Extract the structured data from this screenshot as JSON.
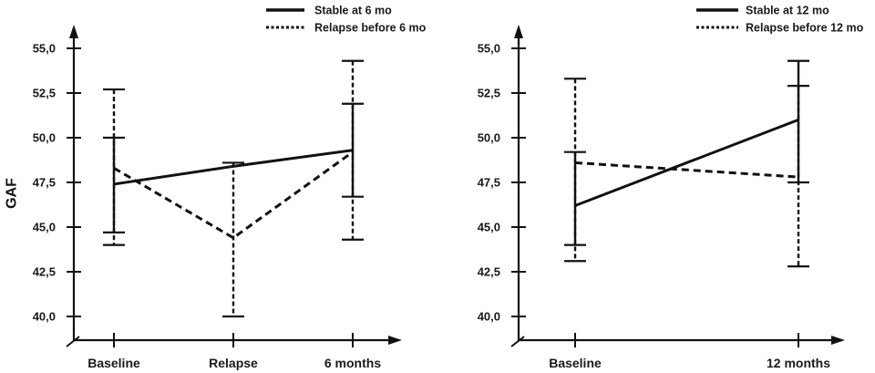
{
  "chart_data": [
    {
      "type": "line",
      "title": "",
      "ylabel": "GAF",
      "xlabel": "",
      "ylim": [
        38.8,
        56.4
      ],
      "yticks": [
        "55,0",
        "52,5",
        "50,0",
        "47,5",
        "45,0",
        "42,5",
        "40,0"
      ],
      "ytick_values": [
        55.0,
        52.5,
        50.0,
        47.5,
        45.0,
        42.5,
        40.0
      ],
      "categories": [
        "Baseline",
        "Relapse",
        "6 months"
      ],
      "grid": false,
      "legend_position": "top-right",
      "series": [
        {
          "name": "Stable at 6 mo",
          "style": "solid",
          "x_index": [
            0,
            1,
            2
          ],
          "values": [
            47.4,
            48.4,
            49.3
          ],
          "error_low": [
            44.7,
            null,
            46.7
          ],
          "error_high": [
            50.0,
            null,
            51.9
          ]
        },
        {
          "name": "Relapse before 6 mo",
          "style": "dashed",
          "x_index": [
            0,
            1,
            2
          ],
          "values": [
            48.3,
            44.4,
            49.2
          ],
          "error_low": [
            44.0,
            40.0,
            44.3
          ],
          "error_high": [
            52.7,
            48.6,
            54.3
          ]
        }
      ]
    },
    {
      "type": "line",
      "title": "",
      "ylabel": "",
      "xlabel": "",
      "ylim": [
        38.8,
        56.4
      ],
      "yticks": [
        "55,0",
        "52,5",
        "50,0",
        "47,5",
        "45,0",
        "42,5",
        "40,0"
      ],
      "ytick_values": [
        55.0,
        52.5,
        50.0,
        47.5,
        45.0,
        42.5,
        40.0
      ],
      "categories": [
        "Baseline",
        "12 months"
      ],
      "grid": false,
      "legend_position": "top-right",
      "series": [
        {
          "name": "Stable at 12 mo",
          "style": "solid",
          "x_index": [
            0,
            1
          ],
          "values": [
            46.2,
            51.0
          ],
          "error_low": [
            44.0,
            47.5
          ],
          "error_high": [
            49.2,
            54.3
          ]
        },
        {
          "name": "Relapse before 12 mo",
          "style": "dashed",
          "x_index": [
            0,
            1
          ],
          "values": [
            48.6,
            47.8
          ],
          "error_low": [
            43.1,
            42.8
          ],
          "error_high": [
            53.3,
            52.9
          ]
        }
      ]
    }
  ]
}
